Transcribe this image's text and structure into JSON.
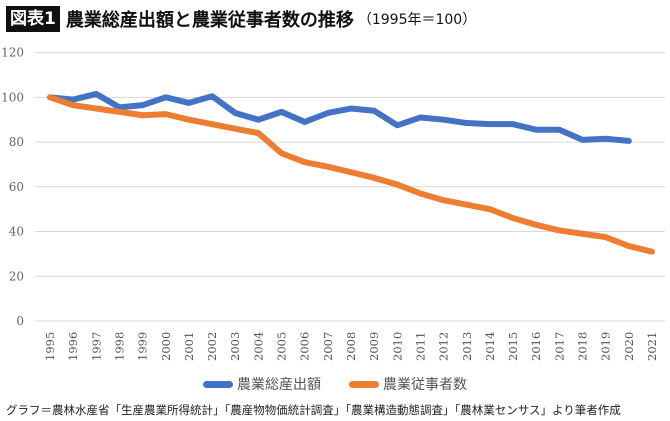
{
  "title": {
    "badge": "図表1",
    "text": "農業総産出額と農業従事者数の推移",
    "subtitle": "（1995年＝100）"
  },
  "source": "グラフ＝農林水産省「生産農業所得統計」「農産物物価統計調査」「農業構造動態調査」「農林業センサス」より筆者作成",
  "chart_data": {
    "type": "line",
    "title": "農業総産出額と農業従事者数の推移（1995年＝100）",
    "x": [
      1995,
      1996,
      1997,
      1998,
      1999,
      2000,
      2001,
      2002,
      2003,
      2004,
      2005,
      2006,
      2007,
      2008,
      2009,
      2010,
      2011,
      2012,
      2013,
      2014,
      2015,
      2016,
      2017,
      2018,
      2019,
      2020,
      2021
    ],
    "ylim": [
      0,
      120
    ],
    "yticks": [
      0,
      20,
      40,
      60,
      80,
      100,
      120
    ],
    "grid": true,
    "legend": "bottom",
    "series": [
      {
        "name": "農業総産出額",
        "color": "#4472C4",
        "values": [
          100,
          99,
          101.5,
          95.5,
          96.5,
          100,
          97.5,
          100.5,
          93,
          90,
          93.5,
          89,
          93,
          95,
          94,
          87.5,
          91,
          90,
          88.5,
          88,
          88,
          85.5,
          85.5,
          81,
          81.5,
          80.5,
          null
        ]
      },
      {
        "name": "農業従事者数",
        "color": "#ED7D31",
        "values": [
          100,
          96.5,
          95,
          93.5,
          92,
          92.5,
          90,
          88,
          86,
          84,
          75,
          71,
          69,
          66.5,
          64,
          61,
          57,
          54,
          52,
          50,
          46,
          43,
          40.5,
          39,
          37.5,
          33.5,
          31
        ]
      }
    ]
  }
}
